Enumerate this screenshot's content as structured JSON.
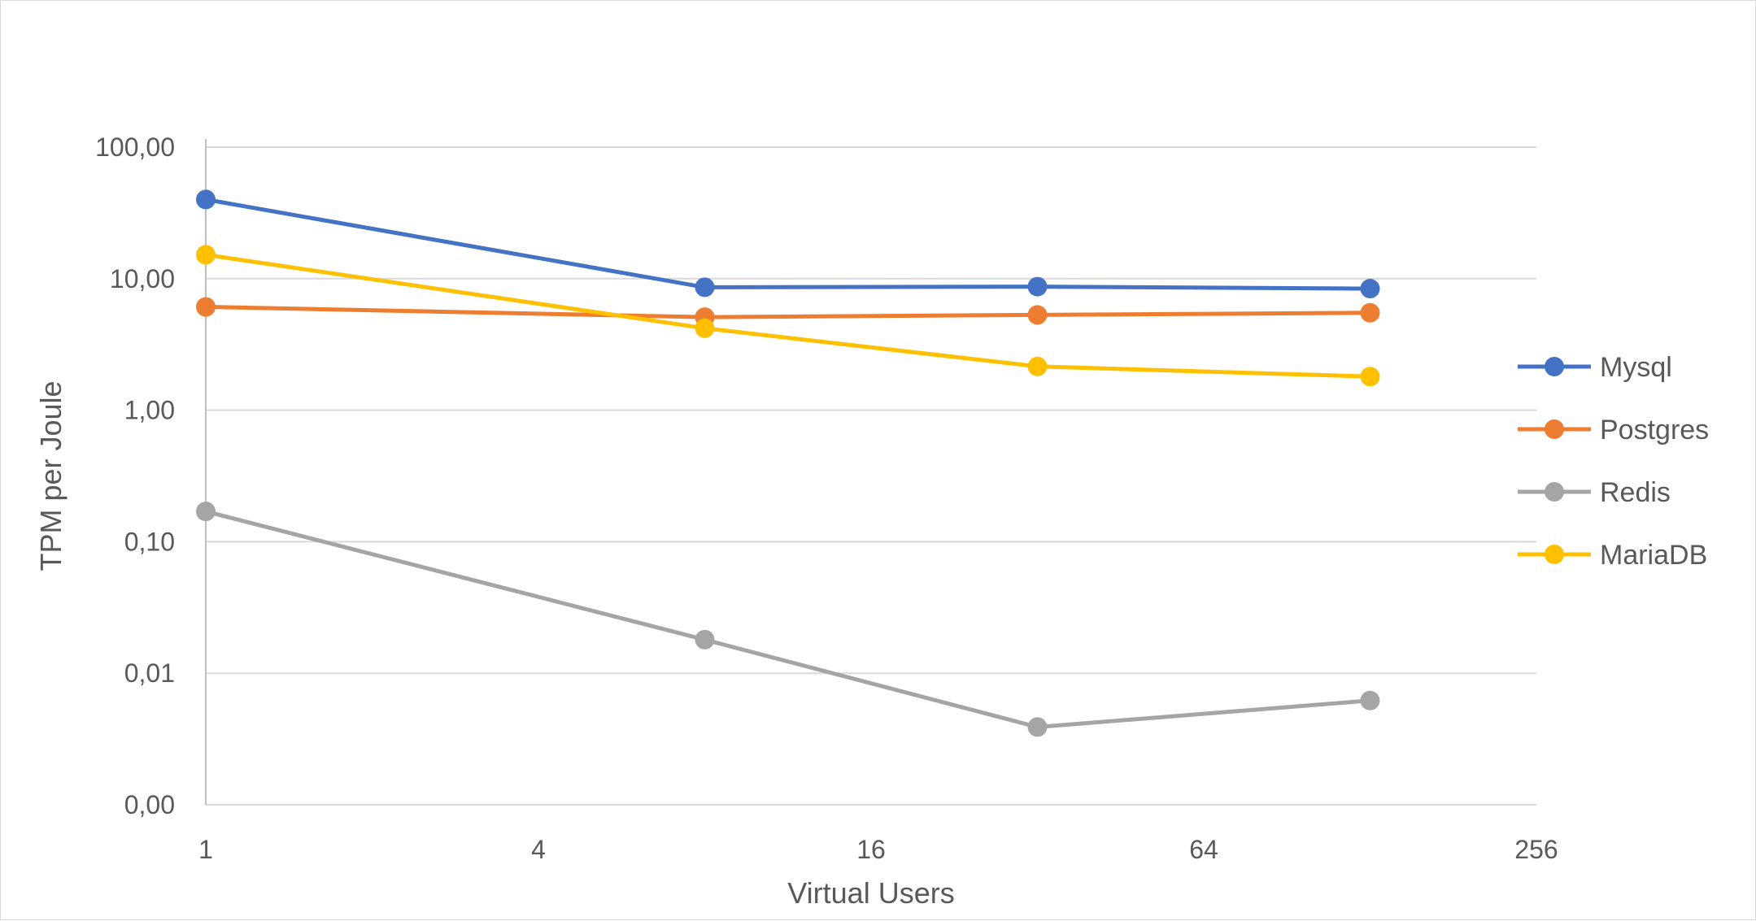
{
  "chart_data": {
    "type": "line",
    "xlabel": "Virtual Users",
    "ylabel": "TPM per Joule",
    "x_scale": "log2",
    "y_scale": "log10",
    "xlim": [
      1,
      256
    ],
    "ylim": [
      0.001,
      100
    ],
    "x_ticks": [
      1,
      4,
      16,
      64,
      256
    ],
    "x_tick_labels": [
      "1",
      "4",
      "16",
      "64",
      "256"
    ],
    "y_ticks": [
      0.001,
      0.01,
      0.1,
      1,
      10,
      100
    ],
    "y_tick_labels": [
      "0,00",
      "0,01",
      "0,10",
      "1,00",
      "10,00",
      "100,00"
    ],
    "grid": "horizontal",
    "legend": "right",
    "x": [
      1,
      8,
      32,
      128
    ],
    "series": [
      {
        "name": "Mysql",
        "color": "#4472C4",
        "values": [
          40,
          8.6,
          8.7,
          8.4
        ]
      },
      {
        "name": "Postgres",
        "color": "#ED7D31",
        "values": [
          6.1,
          5.1,
          5.3,
          5.5
        ]
      },
      {
        "name": "Redis",
        "color": "#A5A5A5",
        "values": [
          0.17,
          0.018,
          0.0039,
          0.0062
        ]
      },
      {
        "name": "MariaDB",
        "color": "#FFC000",
        "values": [
          15.2,
          4.2,
          2.15,
          1.8
        ]
      }
    ]
  }
}
